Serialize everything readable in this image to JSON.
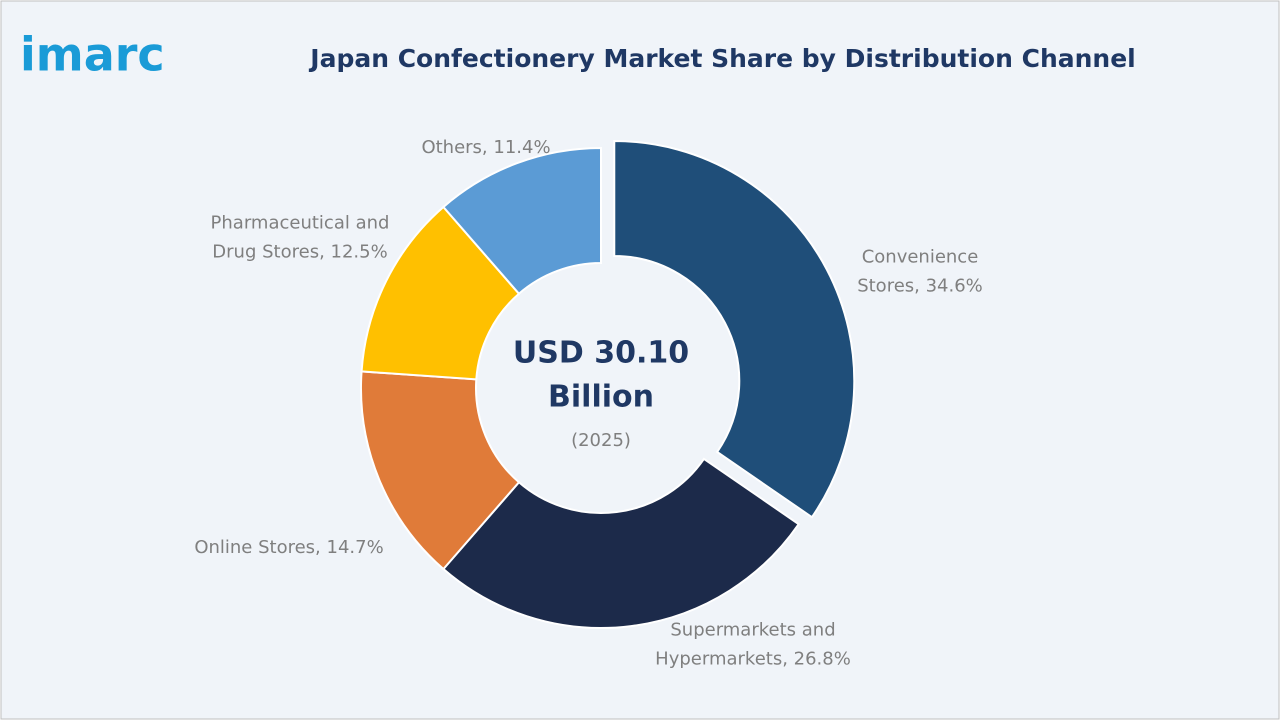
{
  "logo": "imarc",
  "chart_data": {
    "type": "donut",
    "title": "Japan Confectionery Market Share by Distribution Channel",
    "center_label": [
      "USD 30.10",
      "Billion"
    ],
    "center_sublabel": "(2025)",
    "labels": [
      [
        "Convenience",
        "Stores, 34.6%"
      ],
      [
        "Supermarkets and",
        "Hypermarkets, 26.8%"
      ],
      [
        "Online Stores, 14.7%"
      ],
      [
        "Pharmaceutical and",
        "Drug Stores, 12.5%"
      ],
      [
        "Others, 11.4%"
      ]
    ],
    "values": [
      34.6,
      26.8,
      14.7,
      12.5,
      11.4
    ],
    "colors": [
      "#1f4e79",
      "#1c2a4a",
      "#e07b39",
      "#ffc000",
      "#5b9bd5"
    ]
  }
}
